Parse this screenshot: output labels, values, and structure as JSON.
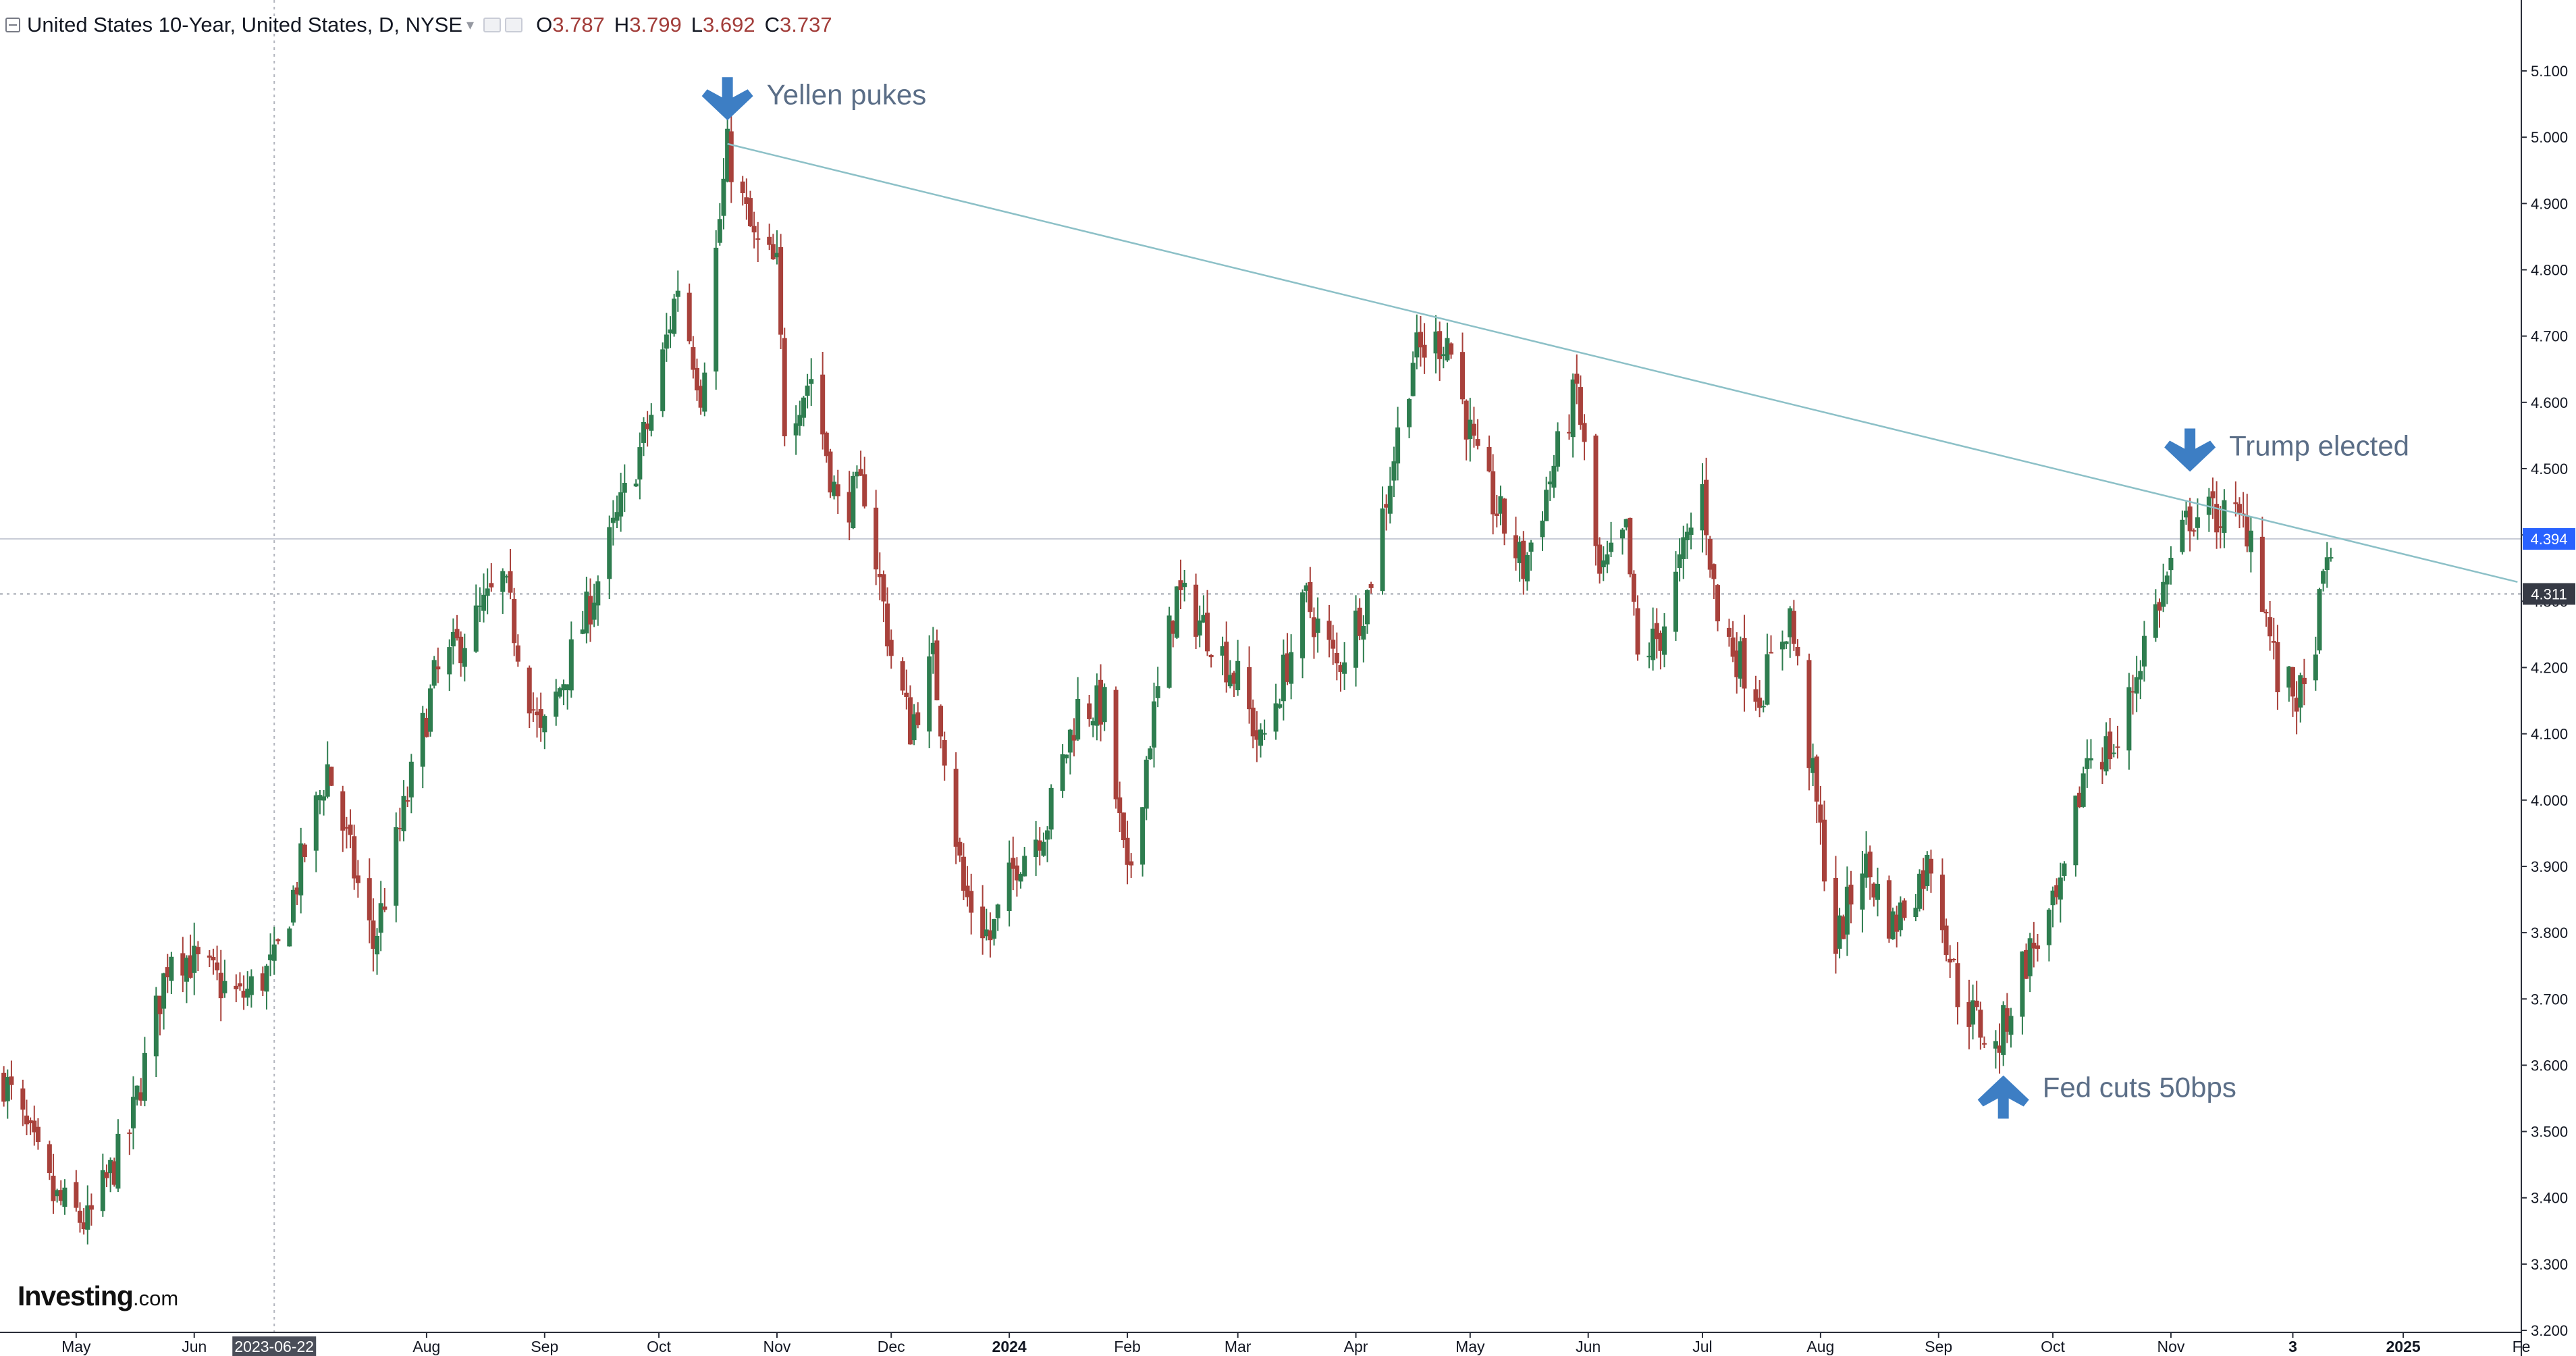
{
  "header": {
    "symbol": "United States 10-Year, United States, D, NYSE",
    "open_label": "O",
    "open_value": "3.787",
    "high_label": "H",
    "high_value": "3.799",
    "low_label": "L",
    "low_value": "3.692",
    "close_label": "C",
    "close_value": "3.737"
  },
  "colors": {
    "up": "#2e7d4f",
    "down": "#a8413b",
    "trendline": "#8cc0c7",
    "annotation_arrow": "#3d7ec4",
    "annotation_text": "#5b6e87",
    "axis_text": "#131722"
  },
  "logo": {
    "brand": "Investing",
    "suffix": ".com"
  },
  "chart_data": {
    "type": "candlestick",
    "price_axis": {
      "ticks": [
        "3.200",
        "3.300",
        "3.400",
        "3.500",
        "3.600",
        "3.700",
        "3.800",
        "3.900",
        "4.000",
        "4.100",
        "4.200",
        "4.300",
        "4.400",
        "4.500",
        "4.600",
        "4.700",
        "4.800",
        "4.900",
        "5.000",
        "5.100"
      ],
      "range": [
        3.197,
        5.207
      ]
    },
    "time_axis": {
      "ticks": [
        {
          "label": "May",
          "date": "2023-05-01"
        },
        {
          "label": "Jun",
          "date": "2023-06-01"
        },
        {
          "label": "Aug",
          "date": "2023-08-01"
        },
        {
          "label": "Sep",
          "date": "2023-09-01"
        },
        {
          "label": "Oct",
          "date": "2023-10-01"
        },
        {
          "label": "Nov",
          "date": "2023-11-01"
        },
        {
          "label": "Dec",
          "date": "2023-12-01"
        },
        {
          "label": "2024",
          "date": "2024-01-01"
        },
        {
          "label": "Feb",
          "date": "2024-02-01"
        },
        {
          "label": "Mar",
          "date": "2024-03-01"
        },
        {
          "label": "Apr",
          "date": "2024-04-01"
        },
        {
          "label": "May",
          "date": "2024-05-01"
        },
        {
          "label": "Jun",
          "date": "2024-06-01"
        },
        {
          "label": "Jul",
          "date": "2024-07-01"
        },
        {
          "label": "Aug",
          "date": "2024-08-01"
        },
        {
          "label": "Sep",
          "date": "2024-09-01"
        },
        {
          "label": "Oct",
          "date": "2024-10-01"
        },
        {
          "label": "Nov",
          "date": "2024-11-01"
        },
        {
          "label": "3",
          "date": "2024-12-03"
        },
        {
          "label": "2025",
          "date": "2025-01-01"
        },
        {
          "label": "Fe",
          "date": "2025-02-01"
        }
      ],
      "highlighted_date": "2023-06-22",
      "range": [
        "2023-04-11",
        "2025-02-01"
      ]
    },
    "price_labels": [
      {
        "value": "4.394",
        "price": 4.394,
        "color": "#2962ff"
      },
      {
        "value": "4.311",
        "price": 4.311,
        "color": "#363a45"
      }
    ],
    "trendline": {
      "from": {
        "date": "2023-10-19",
        "price": 4.99
      },
      "to": {
        "date": "2025-01-31",
        "price": 4.329
      }
    },
    "annotations": [
      {
        "text": "Yellen pukes",
        "date": "2023-10-19",
        "price": 5.06,
        "direction": "down"
      },
      {
        "text": "Trump elected",
        "date": "2024-11-06",
        "price": 4.53,
        "direction": "down"
      },
      {
        "text": "Fed cuts 50bps",
        "date": "2024-09-18",
        "price": 3.55,
        "direction": "up"
      }
    ],
    "anchors": [
      {
        "date": "2023-04-12",
        "price": 3.58
      },
      {
        "date": "2023-04-25",
        "price": 3.4
      },
      {
        "date": "2023-05-04",
        "price": 3.36
      },
      {
        "date": "2023-05-15",
        "price": 3.5
      },
      {
        "date": "2023-05-26",
        "price": 3.78
      },
      {
        "date": "2023-06-13",
        "price": 3.7
      },
      {
        "date": "2023-06-22",
        "price": 3.75
      },
      {
        "date": "2023-07-06",
        "price": 4.05
      },
      {
        "date": "2023-07-18",
        "price": 3.78
      },
      {
        "date": "2023-08-03",
        "price": 4.18
      },
      {
        "date": "2023-08-21",
        "price": 4.33
      },
      {
        "date": "2023-08-31",
        "price": 4.09
      },
      {
        "date": "2023-09-12",
        "price": 4.28
      },
      {
        "date": "2023-09-29",
        "price": 4.58
      },
      {
        "date": "2023-10-06",
        "price": 4.78
      },
      {
        "date": "2023-10-12",
        "price": 4.62
      },
      {
        "date": "2023-10-19",
        "price": 4.98
      },
      {
        "date": "2023-10-26",
        "price": 4.84
      },
      {
        "date": "2023-11-01",
        "price": 4.8
      },
      {
        "date": "2023-11-03",
        "price": 4.57
      },
      {
        "date": "2023-11-10",
        "price": 4.64
      },
      {
        "date": "2023-11-17",
        "price": 4.44
      },
      {
        "date": "2023-11-24",
        "price": 4.47
      },
      {
        "date": "2023-12-01",
        "price": 4.22
      },
      {
        "date": "2023-12-06",
        "price": 4.11
      },
      {
        "date": "2023-12-12",
        "price": 4.21
      },
      {
        "date": "2023-12-20",
        "price": 3.86
      },
      {
        "date": "2023-12-27",
        "price": 3.79
      },
      {
        "date": "2024-01-03",
        "price": 3.91
      },
      {
        "date": "2024-01-11",
        "price": 3.97
      },
      {
        "date": "2024-01-19",
        "price": 4.14
      },
      {
        "date": "2024-01-26",
        "price": 4.14
      },
      {
        "date": "2024-02-01",
        "price": 3.87
      },
      {
        "date": "2024-02-07",
        "price": 4.1
      },
      {
        "date": "2024-02-14",
        "price": 4.31
      },
      {
        "date": "2024-02-23",
        "price": 4.25
      },
      {
        "date": "2024-03-01",
        "price": 4.18
      },
      {
        "date": "2024-03-07",
        "price": 4.08
      },
      {
        "date": "2024-03-13",
        "price": 4.19
      },
      {
        "date": "2024-03-19",
        "price": 4.3
      },
      {
        "date": "2024-03-27",
        "price": 4.2
      },
      {
        "date": "2024-04-04",
        "price": 4.31
      },
      {
        "date": "2024-04-16",
        "price": 4.67
      },
      {
        "date": "2024-04-25",
        "price": 4.7
      },
      {
        "date": "2024-05-03",
        "price": 4.5
      },
      {
        "date": "2024-05-15",
        "price": 4.35
      },
      {
        "date": "2024-05-29",
        "price": 4.62
      },
      {
        "date": "2024-06-04",
        "price": 4.33
      },
      {
        "date": "2024-06-11",
        "price": 4.4
      },
      {
        "date": "2024-06-14",
        "price": 4.21
      },
      {
        "date": "2024-06-20",
        "price": 4.25
      },
      {
        "date": "2024-07-01",
        "price": 4.47
      },
      {
        "date": "2024-07-05",
        "price": 4.27
      },
      {
        "date": "2024-07-16",
        "price": 4.16
      },
      {
        "date": "2024-07-24",
        "price": 4.28
      },
      {
        "date": "2024-08-05",
        "price": 3.78
      },
      {
        "date": "2024-08-12",
        "price": 3.91
      },
      {
        "date": "2024-08-20",
        "price": 3.81
      },
      {
        "date": "2024-08-30",
        "price": 3.91
      },
      {
        "date": "2024-09-06",
        "price": 3.71
      },
      {
        "date": "2024-09-16",
        "price": 3.62
      },
      {
        "date": "2024-09-23",
        "price": 3.75
      },
      {
        "date": "2024-10-03",
        "price": 3.85
      },
      {
        "date": "2024-10-10",
        "price": 4.07
      },
      {
        "date": "2024-10-18",
        "price": 4.08
      },
      {
        "date": "2024-10-25",
        "price": 4.24
      },
      {
        "date": "2024-11-06",
        "price": 4.43
      },
      {
        "date": "2024-11-15",
        "price": 4.43
      },
      {
        "date": "2024-11-22",
        "price": 4.41
      },
      {
        "date": "2024-11-29",
        "price": 4.18
      },
      {
        "date": "2024-12-06",
        "price": 4.15
      },
      {
        "date": "2024-12-13",
        "price": 4.39
      }
    ],
    "xlabel": "",
    "ylabel": ""
  }
}
